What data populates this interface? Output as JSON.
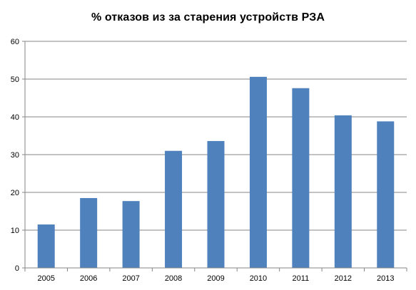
{
  "chart_data": {
    "type": "bar",
    "title": "% отказов из за старения устройств РЗА",
    "xlabel": "",
    "ylabel": "",
    "categories": [
      "2005",
      "2006",
      "2007",
      "2008",
      "2009",
      "2010",
      "2011",
      "2012",
      "2013"
    ],
    "values": [
      11.5,
      18.5,
      17.7,
      31.0,
      33.6,
      50.6,
      47.6,
      40.4,
      38.8
    ],
    "ylim": [
      0,
      60
    ],
    "yticks": [
      "0",
      "10",
      "20",
      "30",
      "40",
      "50",
      "60"
    ],
    "grid": true,
    "legend": "none",
    "bar_color": "#4f81bd",
    "grid_color": "#868686",
    "axis_color": "#868686"
  }
}
